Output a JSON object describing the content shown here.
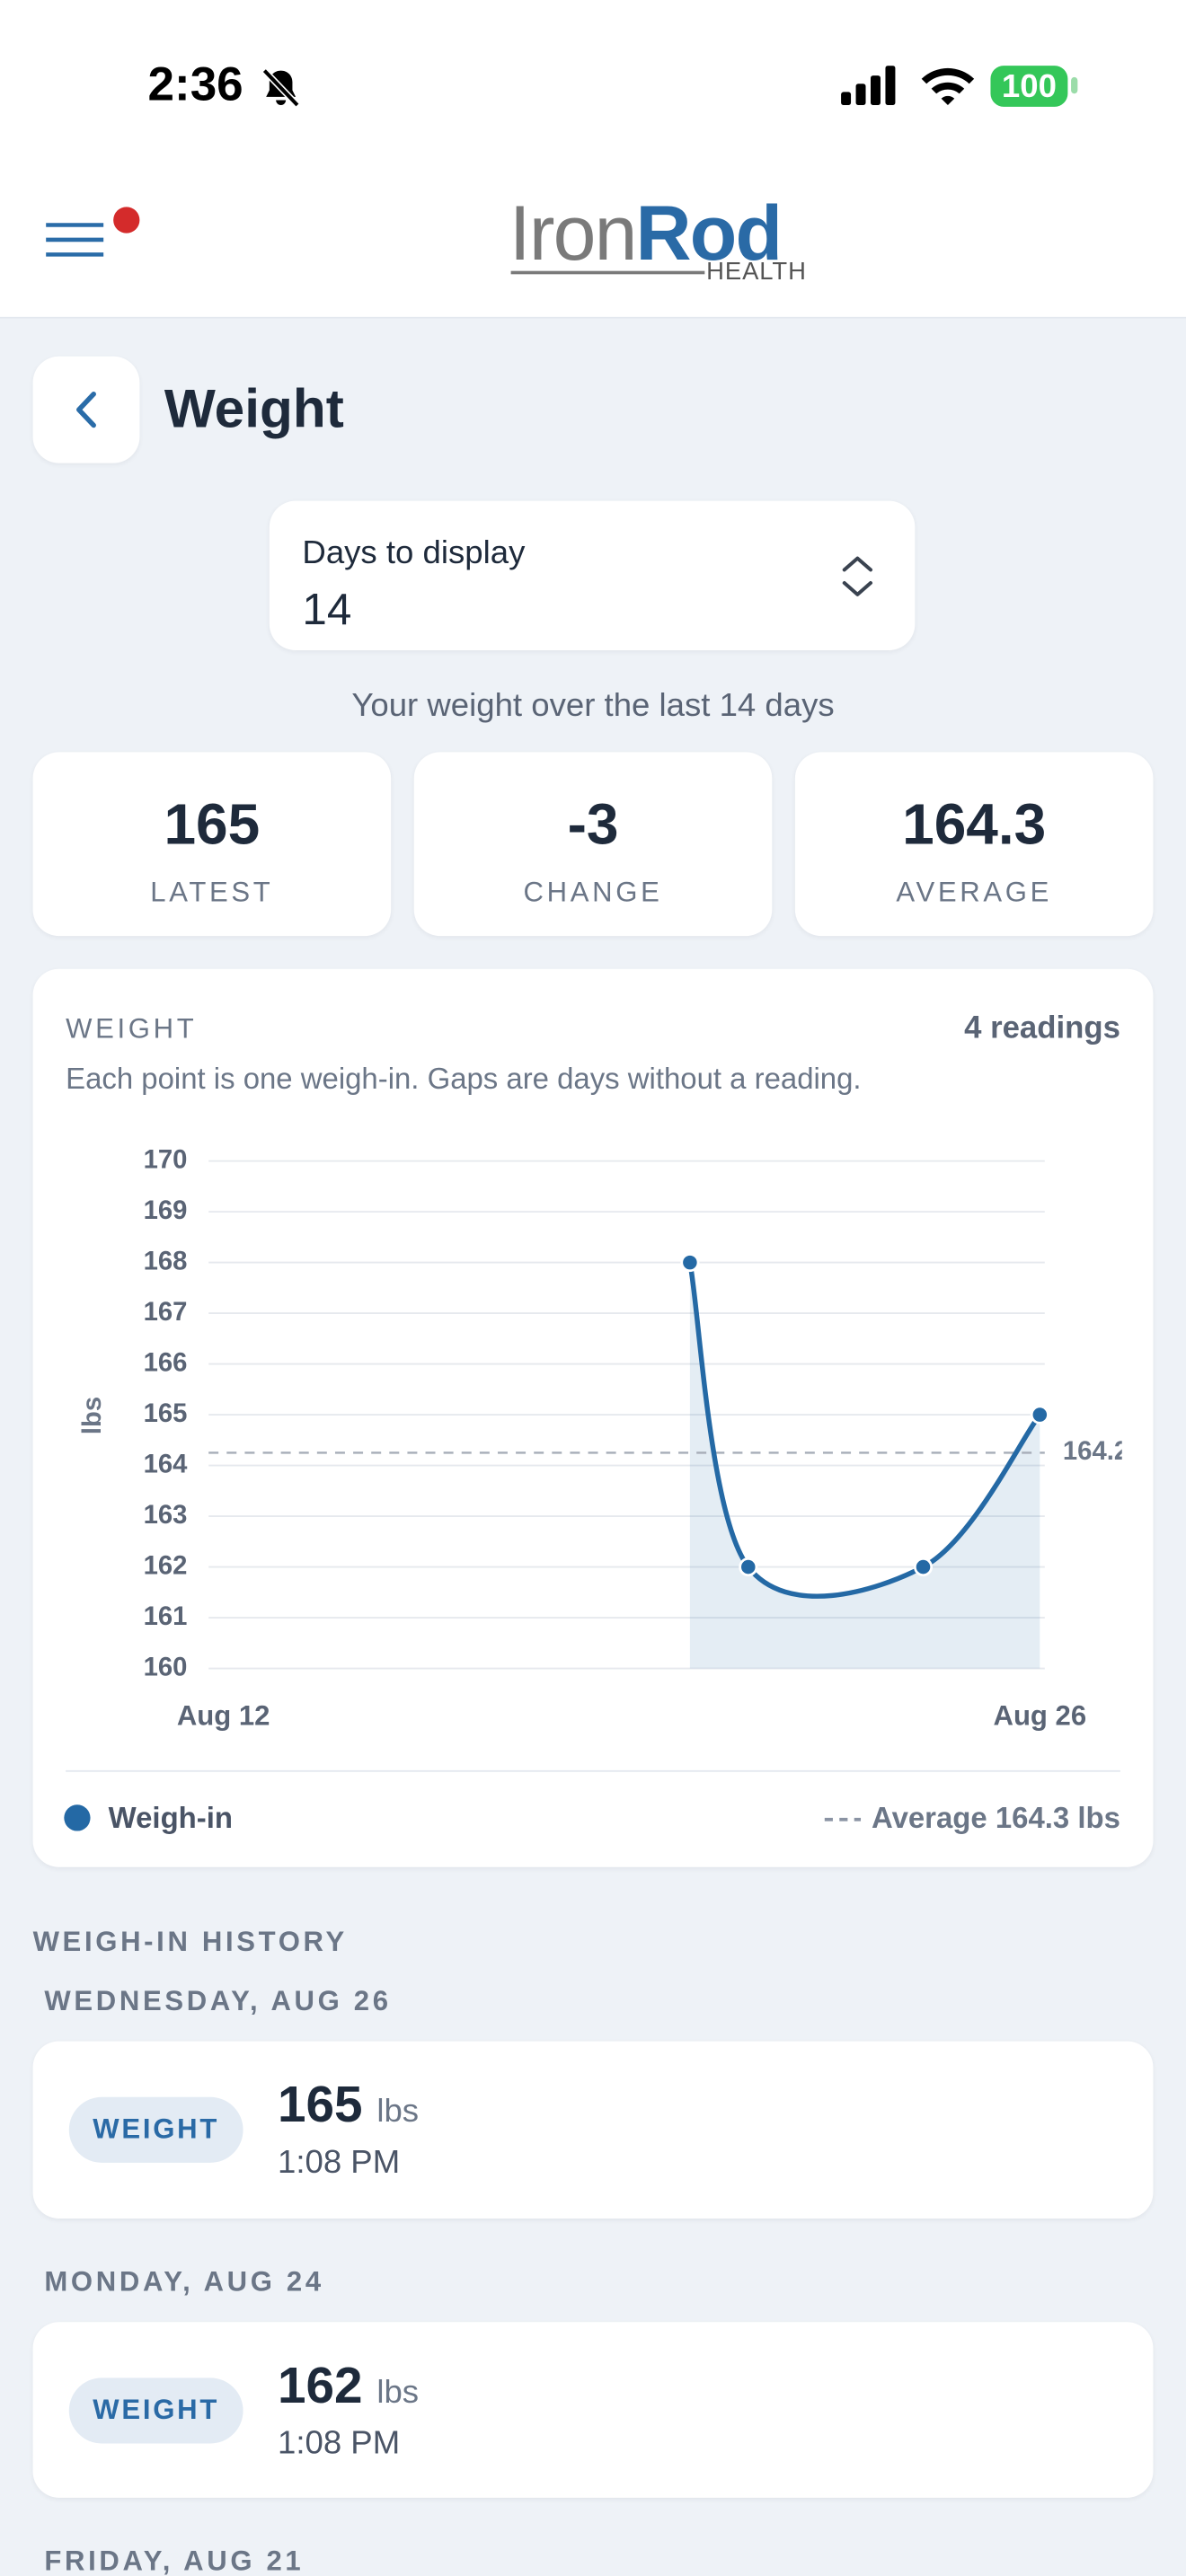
{
  "status_bar": {
    "time": "2:36",
    "battery": "100"
  },
  "header": {
    "logo_primary": "Iron",
    "logo_secondary": "Rod",
    "logo_sub": "HEALTH"
  },
  "page": {
    "title": "Weight"
  },
  "range_select": {
    "label": "Days to display",
    "value": 14
  },
  "summary": "Your weight over the last 14 days",
  "stats": [
    {
      "value": 165,
      "label": "LATEST"
    },
    {
      "value": -3,
      "label": "CHANGE"
    },
    {
      "value": 164.3,
      "label": "AVERAGE"
    }
  ],
  "chart_card": {
    "title": "WEIGHT",
    "readings": "4 readings",
    "subtitle": "Each point is one weigh-in. Gaps are days without a reading."
  },
  "chart_data": {
    "type": "line",
    "y_label": "lbs",
    "x": [
      20,
      21,
      24,
      26
    ],
    "series": [
      {
        "name": "Weigh-in",
        "color": "#2469a5",
        "values": [
          168,
          162,
          162,
          165
        ]
      }
    ],
    "xlim": [
      12,
      26
    ],
    "xticks": [
      {
        "value": 12,
        "label": "Aug 12"
      },
      {
        "value": 26,
        "label": "Aug 26"
      }
    ],
    "ylim": [
      160,
      170
    ],
    "yticks": [
      160,
      161,
      162,
      163,
      164,
      165,
      166,
      167,
      168,
      169,
      170
    ],
    "grid": true,
    "average": 164.25,
    "average_legend": "Average 164.3 lbs"
  },
  "history": {
    "title": "WEIGH-IN HISTORY",
    "days": [
      {
        "date": "WEDNESDAY, AUG 26",
        "entries": [
          {
            "type": "WEIGHT",
            "value": 165,
            "unit": "lbs",
            "time": "1:08 PM"
          }
        ]
      },
      {
        "date": "MONDAY, AUG 24",
        "entries": [
          {
            "type": "WEIGHT",
            "value": 162,
            "unit": "lbs",
            "time": "1:08 PM"
          }
        ]
      },
      {
        "date": "FRIDAY, AUG 21"
      }
    ]
  }
}
